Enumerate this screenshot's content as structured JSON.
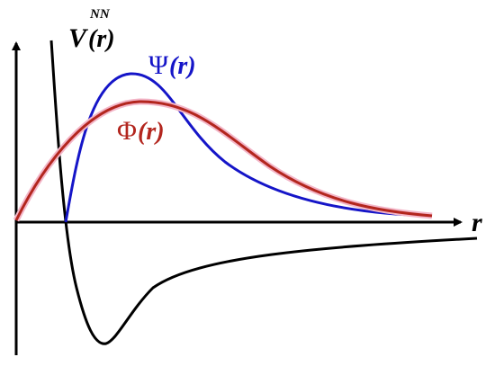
{
  "labels": {
    "potential_symbol": "V",
    "potential_superscript": "NN",
    "potential_arg": "(r)",
    "psi_symbol": "Ψ",
    "psi_arg": "(r)",
    "phi_symbol": "Φ",
    "phi_arg": "(r)",
    "axis": "r"
  }
}
